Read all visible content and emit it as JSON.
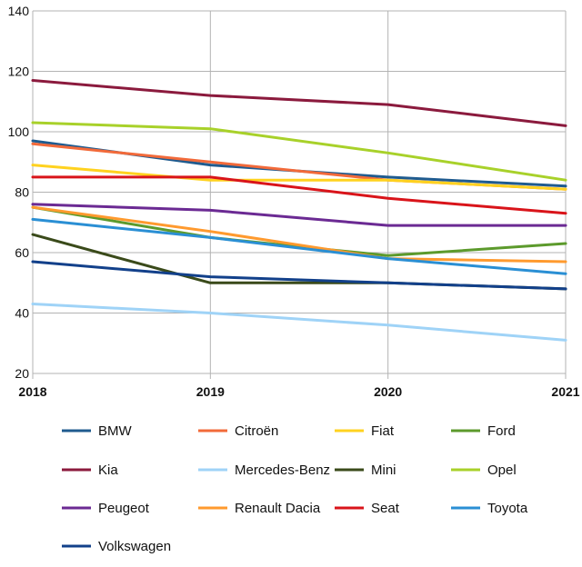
{
  "chart_data": {
    "type": "line",
    "title": "",
    "xlabel": "",
    "ylabel": "",
    "x": [
      "2018",
      "2019",
      "2020",
      "2021"
    ],
    "ylim": [
      20,
      140
    ],
    "yticks": [
      "20",
      "40",
      "60",
      "80",
      "100",
      "120",
      "140"
    ],
    "grid": true,
    "legend_position": "bottom",
    "series": [
      {
        "name": "BMW",
        "color": "#1f5b8f",
        "values": [
          97,
          89,
          85,
          82
        ]
      },
      {
        "name": "Citroën",
        "color": "#f26a3a",
        "values": [
          96,
          90,
          84,
          81
        ]
      },
      {
        "name": "Fiat",
        "color": "#ffd21f",
        "values": [
          89,
          84,
          84,
          81
        ]
      },
      {
        "name": "Ford",
        "color": "#5c9a2c",
        "values": [
          75,
          65,
          59,
          63
        ]
      },
      {
        "name": "Kia",
        "color": "#8b1a3d",
        "values": [
          117,
          112,
          109,
          102
        ]
      },
      {
        "name": "Mercedes-Benz",
        "color": "#9fd3f7",
        "values": [
          43,
          40,
          36,
          31
        ]
      },
      {
        "name": "Mini",
        "color": "#3a4a1a",
        "values": [
          66,
          50,
          50,
          48
        ]
      },
      {
        "name": "Opel",
        "color": "#a8d12a",
        "values": [
          103,
          101,
          93,
          84
        ]
      },
      {
        "name": "Peugeot",
        "color": "#6b2a93",
        "values": [
          76,
          74,
          69,
          69
        ]
      },
      {
        "name": "Renault Dacia",
        "color": "#ff9a2e",
        "values": [
          75,
          67,
          58,
          57
        ]
      },
      {
        "name": "Seat",
        "color": "#d9141a",
        "values": [
          85,
          85,
          78,
          73
        ]
      },
      {
        "name": "Toyota",
        "color": "#2a8fd4",
        "values": [
          71,
          65,
          58,
          53
        ]
      },
      {
        "name": "Volkswagen",
        "color": "#12408a",
        "values": [
          57,
          52,
          50,
          48
        ]
      }
    ]
  }
}
